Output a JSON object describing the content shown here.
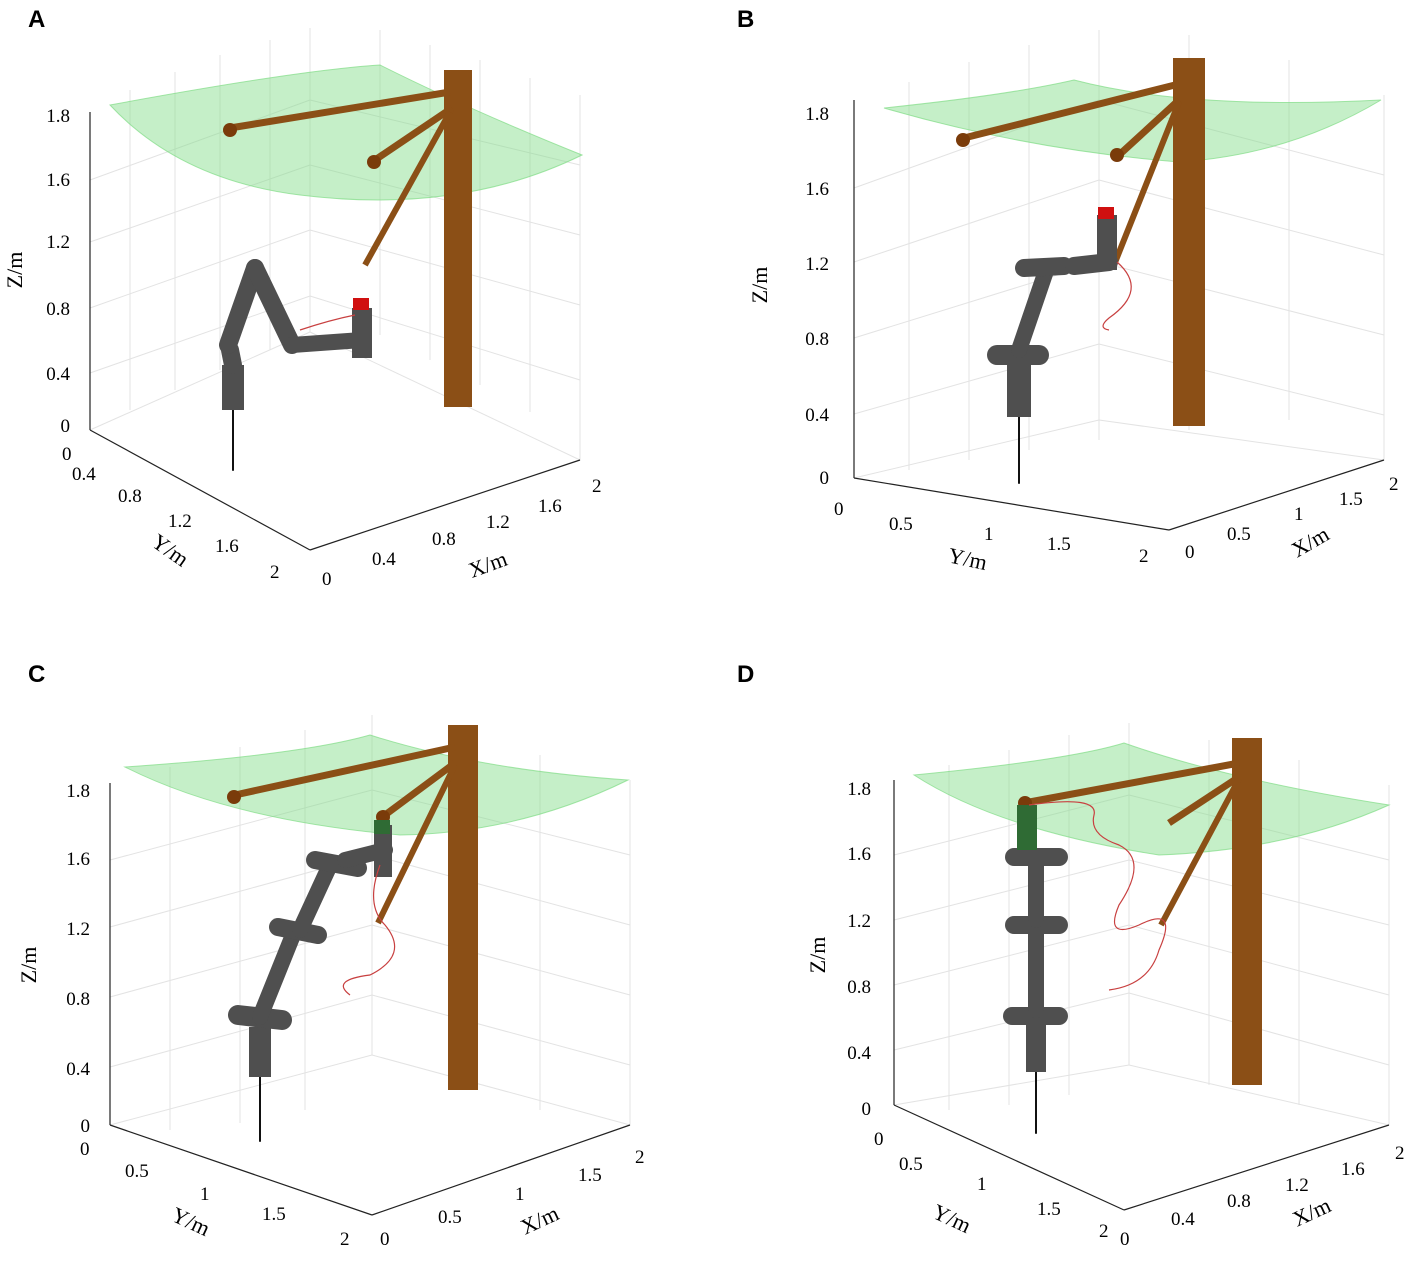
{
  "colors": {
    "canopy": "#7fdc85",
    "trunk": "#8b4f16",
    "fruit": "#7a3b0a",
    "arm": "#4f4f4f",
    "gripper_red": "#d01010",
    "gripper_green": "#2f6b34",
    "trajectory": "#c84040"
  },
  "panels": [
    {
      "label": "A",
      "zlabel": "Z/m",
      "ylabel": "Y/m",
      "xlabel": "X/m",
      "zticks": [
        "0",
        "0.4",
        "0.8",
        "1.2",
        "1.6",
        "1.8"
      ],
      "yticks": [
        "0",
        "0.4",
        "0.8",
        "1.2",
        "1.6",
        "2"
      ],
      "xticks": [
        "0",
        "0.4",
        "0.8",
        "1.2",
        "1.6",
        "2"
      ]
    },
    {
      "label": "B",
      "zlabel": "Z/m",
      "ylabel": "Y/m",
      "xlabel": "X/m",
      "zticks": [
        "0",
        "0.4",
        "0.8",
        "1.2",
        "1.6",
        "1.8"
      ],
      "yticks": [
        "0",
        "0.5",
        "1",
        "1.5",
        "2"
      ],
      "xticks": [
        "0",
        "0.5",
        "1",
        "1.5",
        "2"
      ]
    },
    {
      "label": "C",
      "zlabel": "Z/m",
      "ylabel": "Y/m",
      "xlabel": "X/m",
      "zticks": [
        "0",
        "0.4",
        "0.8",
        "1.2",
        "1.6",
        "1.8"
      ],
      "yticks": [
        "0",
        "0.5",
        "1",
        "1.5",
        "2"
      ],
      "xticks": [
        "0",
        "0.5",
        "1",
        "1.5",
        "2"
      ]
    },
    {
      "label": "D",
      "zlabel": "Z/m",
      "ylabel": "Y/m",
      "xlabel": "X/m",
      "zticks": [
        "0",
        "0.4",
        "0.8",
        "1.2",
        "1.6",
        "1.8"
      ],
      "yticks": [
        "0",
        "0.5",
        "1",
        "1.5",
        "2"
      ],
      "xticks": [
        "0",
        "0.4",
        "0.8",
        "1.2",
        "1.6",
        "2"
      ]
    }
  ]
}
